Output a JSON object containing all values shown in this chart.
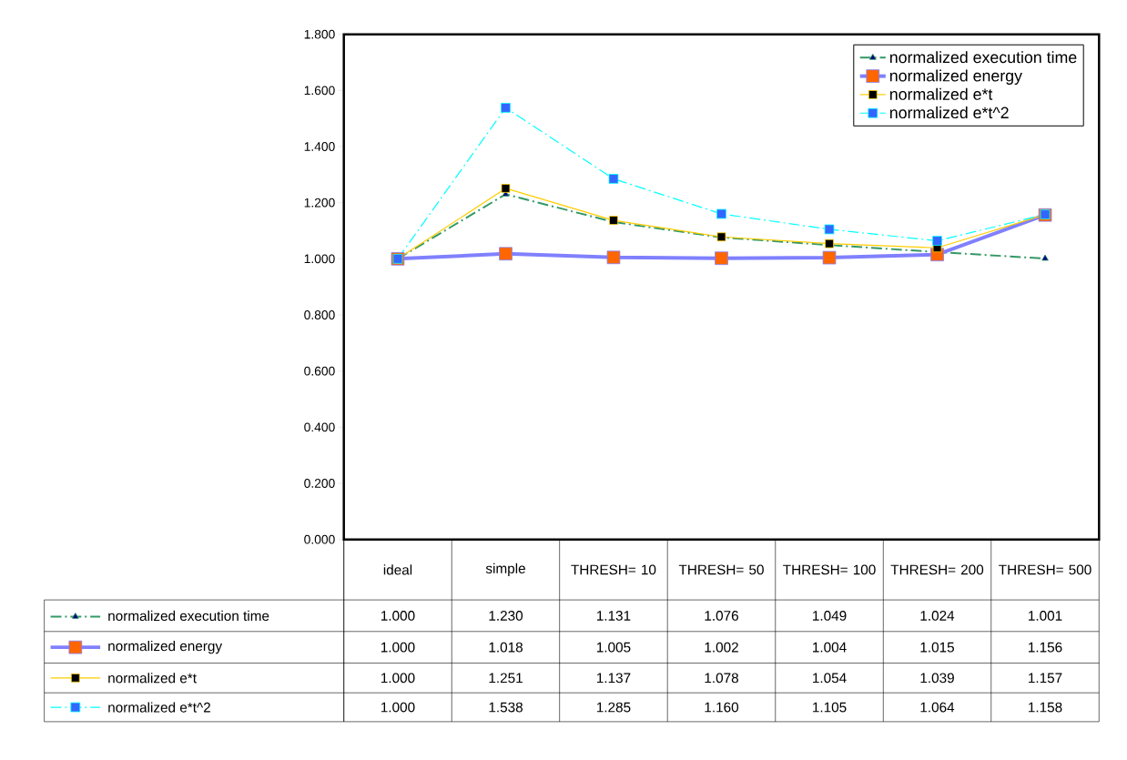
{
  "chart_data": {
    "type": "line",
    "categories": [
      "ideal",
      "simple",
      "THRESH= 10",
      "THRESH= 50",
      "THRESH= 100",
      "THRESH= 200",
      "THRESH= 500"
    ],
    "series": [
      {
        "name": "normalized execution time",
        "color": "#339966",
        "marker": "triangle",
        "line_style": "dashed",
        "values": [
          1.0,
          1.23,
          1.131,
          1.076,
          1.049,
          1.024,
          1.001
        ],
        "value_labels": [
          "1.000",
          "1.230",
          "1.131",
          "1.076",
          "1.049",
          "1.024",
          "1.001"
        ]
      },
      {
        "name": "normalized energy",
        "color": "#8080ff",
        "marker": "square",
        "line_style": "solid",
        "values": [
          1.0,
          1.018,
          1.005,
          1.002,
          1.004,
          1.015,
          1.156
        ],
        "value_labels": [
          "1.000",
          "1.018",
          "1.005",
          "1.002",
          "1.004",
          "1.015",
          "1.156"
        ]
      },
      {
        "name": "normalized e*t",
        "color": "#ffcc00",
        "marker": "square",
        "line_style": "solid",
        "values": [
          1.0,
          1.251,
          1.137,
          1.078,
          1.054,
          1.039,
          1.157
        ],
        "value_labels": [
          "1.000",
          "1.251",
          "1.137",
          "1.078",
          "1.054",
          "1.039",
          "1.157"
        ]
      },
      {
        "name": "normalized e*t^2",
        "color": "#00ffff",
        "marker": "square",
        "line_style": "dashed",
        "values": [
          1.0,
          1.538,
          1.285,
          1.16,
          1.105,
          1.064,
          1.158
        ],
        "value_labels": [
          "1.000",
          "1.538",
          "1.285",
          "1.160",
          "1.105",
          "1.064",
          "1.158"
        ]
      }
    ],
    "ylim": [
      0,
      1.8
    ],
    "yticks": [
      {
        "value": 0,
        "label": "0.000"
      },
      {
        "value": 0.2,
        "label": "0.200"
      },
      {
        "value": 0.4,
        "label": "0.400"
      },
      {
        "value": 0.6,
        "label": "0.600"
      },
      {
        "value": 0.8,
        "label": "0.800"
      },
      {
        "value": 1.0,
        "label": "1.000"
      },
      {
        "value": 1.2,
        "label": "1.200"
      },
      {
        "value": 1.4,
        "label": "1.400"
      },
      {
        "value": 1.6,
        "label": "1.600"
      },
      {
        "value": 1.8,
        "label": "1.800"
      }
    ],
    "grid": false,
    "legend": "top right"
  }
}
